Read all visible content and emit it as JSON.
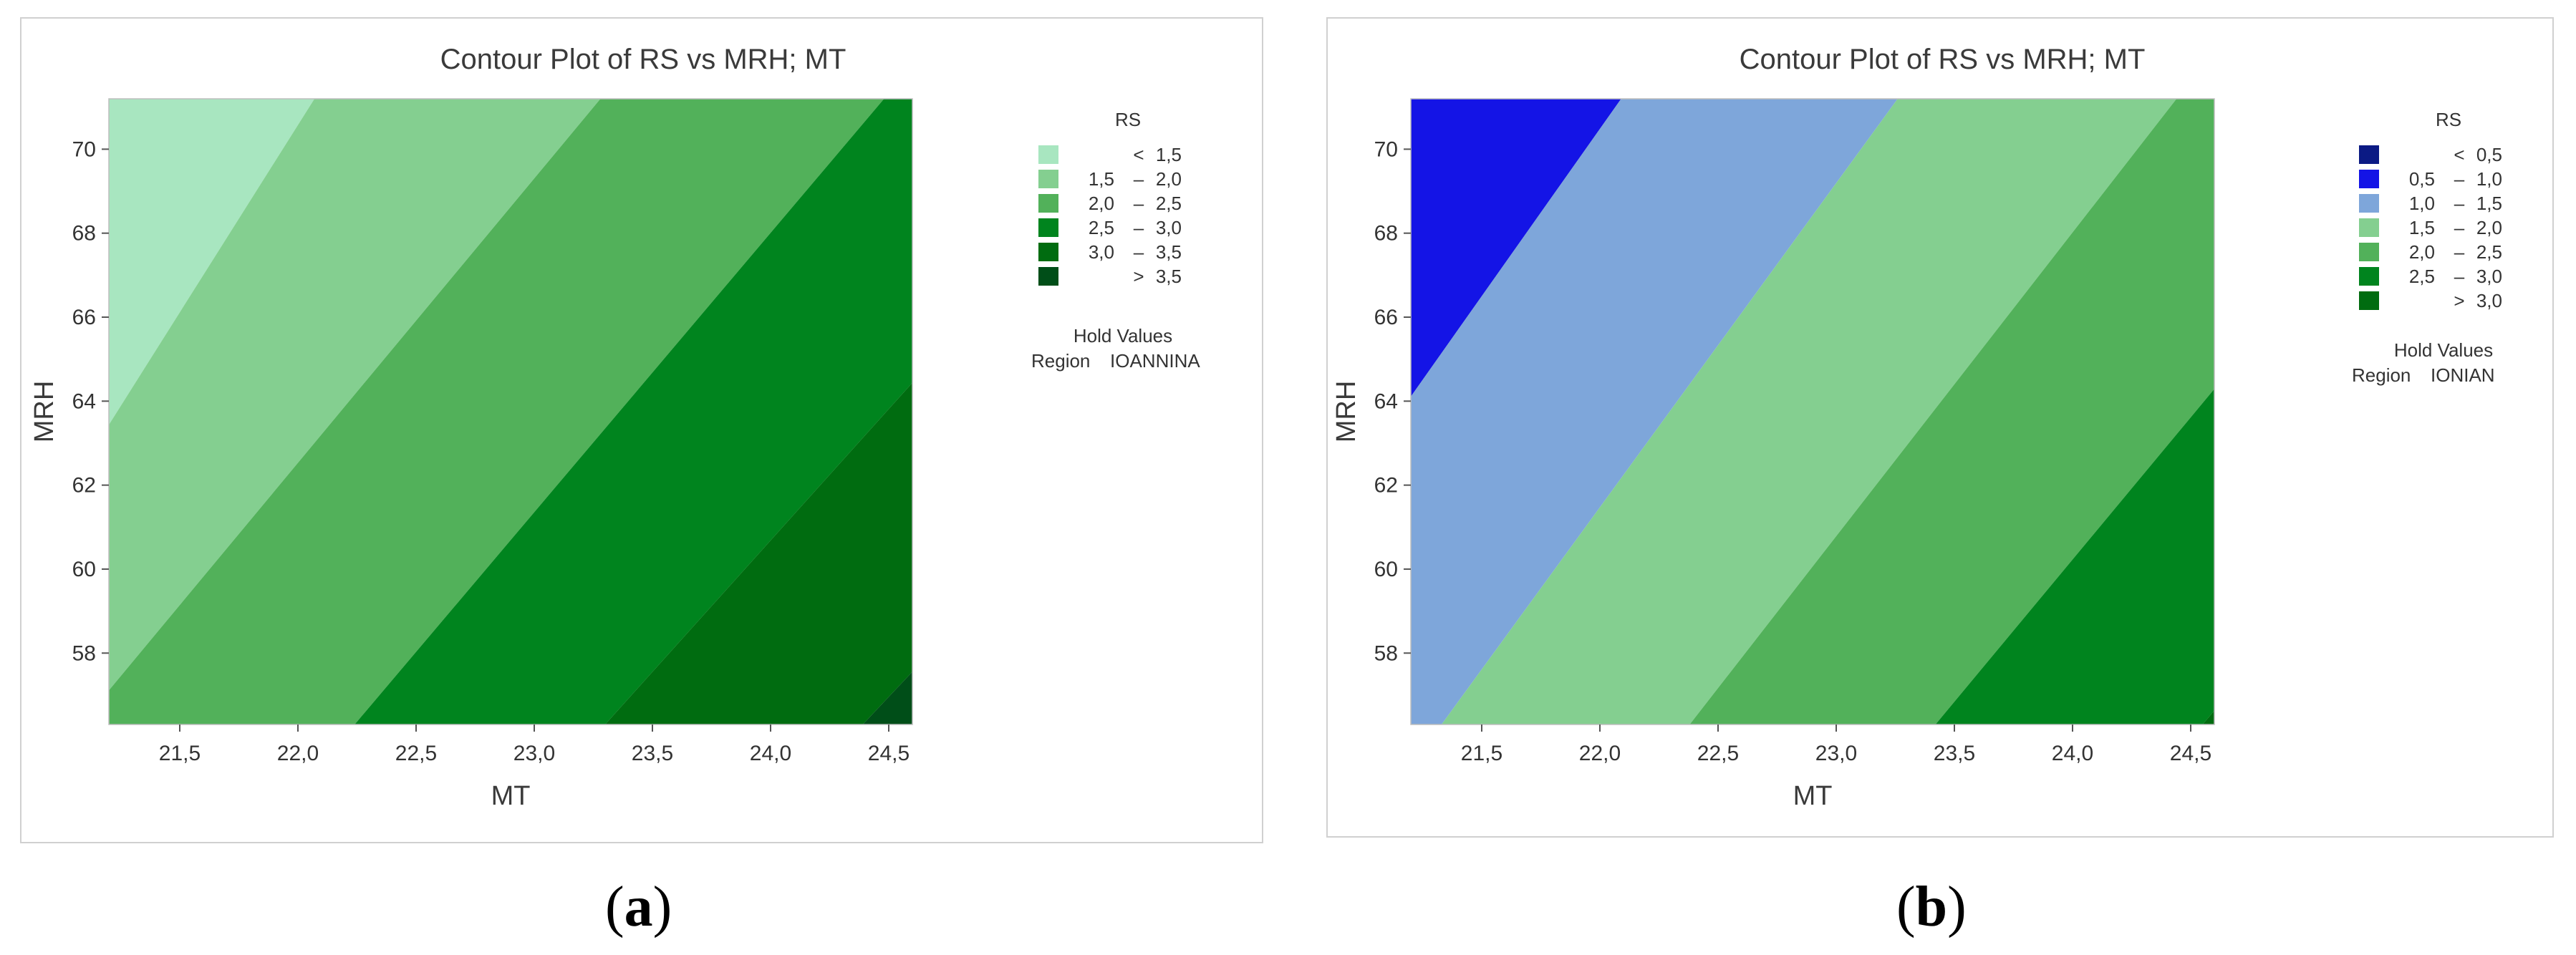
{
  "chart_data": [
    {
      "type": "heatmap",
      "subtype": "contour",
      "title": "Contour Plot of RS vs MRH; MT",
      "xlabel": "MT",
      "ylabel": "MRH",
      "xlim": [
        21.2,
        24.6
      ],
      "ylim": [
        56.3,
        71.2
      ],
      "xticks": [
        "21,5",
        "22,0",
        "22,5",
        "23,0",
        "23,5",
        "24,0",
        "24,5"
      ],
      "xtick_values": [
        21.5,
        22.0,
        22.5,
        23.0,
        23.5,
        24.0,
        24.5
      ],
      "yticks": [
        "58",
        "60",
        "62",
        "64",
        "66",
        "68",
        "70"
      ],
      "ytick_values": [
        58,
        60,
        62,
        64,
        66,
        68,
        70
      ],
      "legend_title": "RS",
      "legend_position": "right",
      "legend": [
        {
          "lo": "",
          "sep": "<",
          "hi": "1,5",
          "color": "#a8e6c0"
        },
        {
          "lo": "1,5",
          "sep": "–",
          "hi": "2,0",
          "color": "#84cf90"
        },
        {
          "lo": "2,0",
          "sep": "–",
          "hi": "2,5",
          "color": "#52b15a"
        },
        {
          "lo": "2,5",
          "sep": "–",
          "hi": "3,0",
          "color": "#00841e"
        },
        {
          "lo": "3,0",
          "sep": "–",
          "hi": "3,5",
          "color": "#006c10"
        },
        {
          "lo": "",
          "sep": ">",
          "hi": "3,5",
          "color": "#004e18"
        }
      ],
      "contour_bounds": [
        1.5,
        2.0,
        2.5,
        3.0,
        3.5
      ],
      "boundary_lines": [
        {
          "bottom_mt": 20.4,
          "top_mt": 22.07
        },
        {
          "bottom_mt": 21.08,
          "top_mt": 23.28
        },
        {
          "bottom_mt": 22.24,
          "top_mt": 24.48
        },
        {
          "bottom_mt": 23.3,
          "top_mt": 25.68
        },
        {
          "bottom_mt": 24.39,
          "top_mt": 26.88
        }
      ],
      "hold_values_title": "Hold Values",
      "hold_label": "Region",
      "hold_value": "IOANNINA"
    },
    {
      "type": "heatmap",
      "subtype": "contour",
      "title": "Contour Plot of RS vs MRH; MT",
      "xlabel": "MT",
      "ylabel": "MRH",
      "xlim": [
        21.2,
        24.6
      ],
      "ylim": [
        56.3,
        71.2
      ],
      "xticks": [
        "21,5",
        "22,0",
        "22,5",
        "23,0",
        "23,5",
        "24,0",
        "24,5"
      ],
      "xtick_values": [
        21.5,
        22.0,
        22.5,
        23.0,
        23.5,
        24.0,
        24.5
      ],
      "yticks": [
        "58",
        "60",
        "62",
        "64",
        "66",
        "68",
        "70"
      ],
      "ytick_values": [
        58,
        60,
        62,
        64,
        66,
        68,
        70
      ],
      "legend_title": "RS",
      "legend_position": "right",
      "legend": [
        {
          "lo": "",
          "sep": "<",
          "hi": "0,5",
          "color": "#0b1a84"
        },
        {
          "lo": "0,5",
          "sep": "–",
          "hi": "1,0",
          "color": "#1414e6"
        },
        {
          "lo": "1,0",
          "sep": "–",
          "hi": "1,5",
          "color": "#7ea6da"
        },
        {
          "lo": "1,5",
          "sep": "–",
          "hi": "2,0",
          "color": "#84cf90"
        },
        {
          "lo": "2,0",
          "sep": "–",
          "hi": "2,5",
          "color": "#52b15a"
        },
        {
          "lo": "2,5",
          "sep": "–",
          "hi": "3,0",
          "color": "#00841e"
        },
        {
          "lo": "",
          "sep": ">",
          "hi": "3,0",
          "color": "#006c10"
        }
      ],
      "contour_bounds": [
        0.5,
        1.0,
        1.5,
        2.0,
        2.5,
        3.0
      ],
      "boundary_lines": [
        {
          "bottom_mt": 19.6,
          "top_mt": 21.0
        },
        {
          "bottom_mt": 20.22,
          "top_mt": 22.09
        },
        {
          "bottom_mt": 21.33,
          "top_mt": 23.26
        },
        {
          "bottom_mt": 22.38,
          "top_mt": 24.44
        },
        {
          "bottom_mt": 23.42,
          "top_mt": 25.62
        },
        {
          "bottom_mt": 24.55,
          "top_mt": 26.8
        }
      ],
      "hold_values_title": "Hold Values",
      "hold_label": "Region",
      "hold_value": "IONIAN"
    }
  ],
  "captions": [
    {
      "open": "(",
      "letter": "a",
      "close": ")"
    },
    {
      "open": "(",
      "letter": "b",
      "close": ")"
    }
  ]
}
